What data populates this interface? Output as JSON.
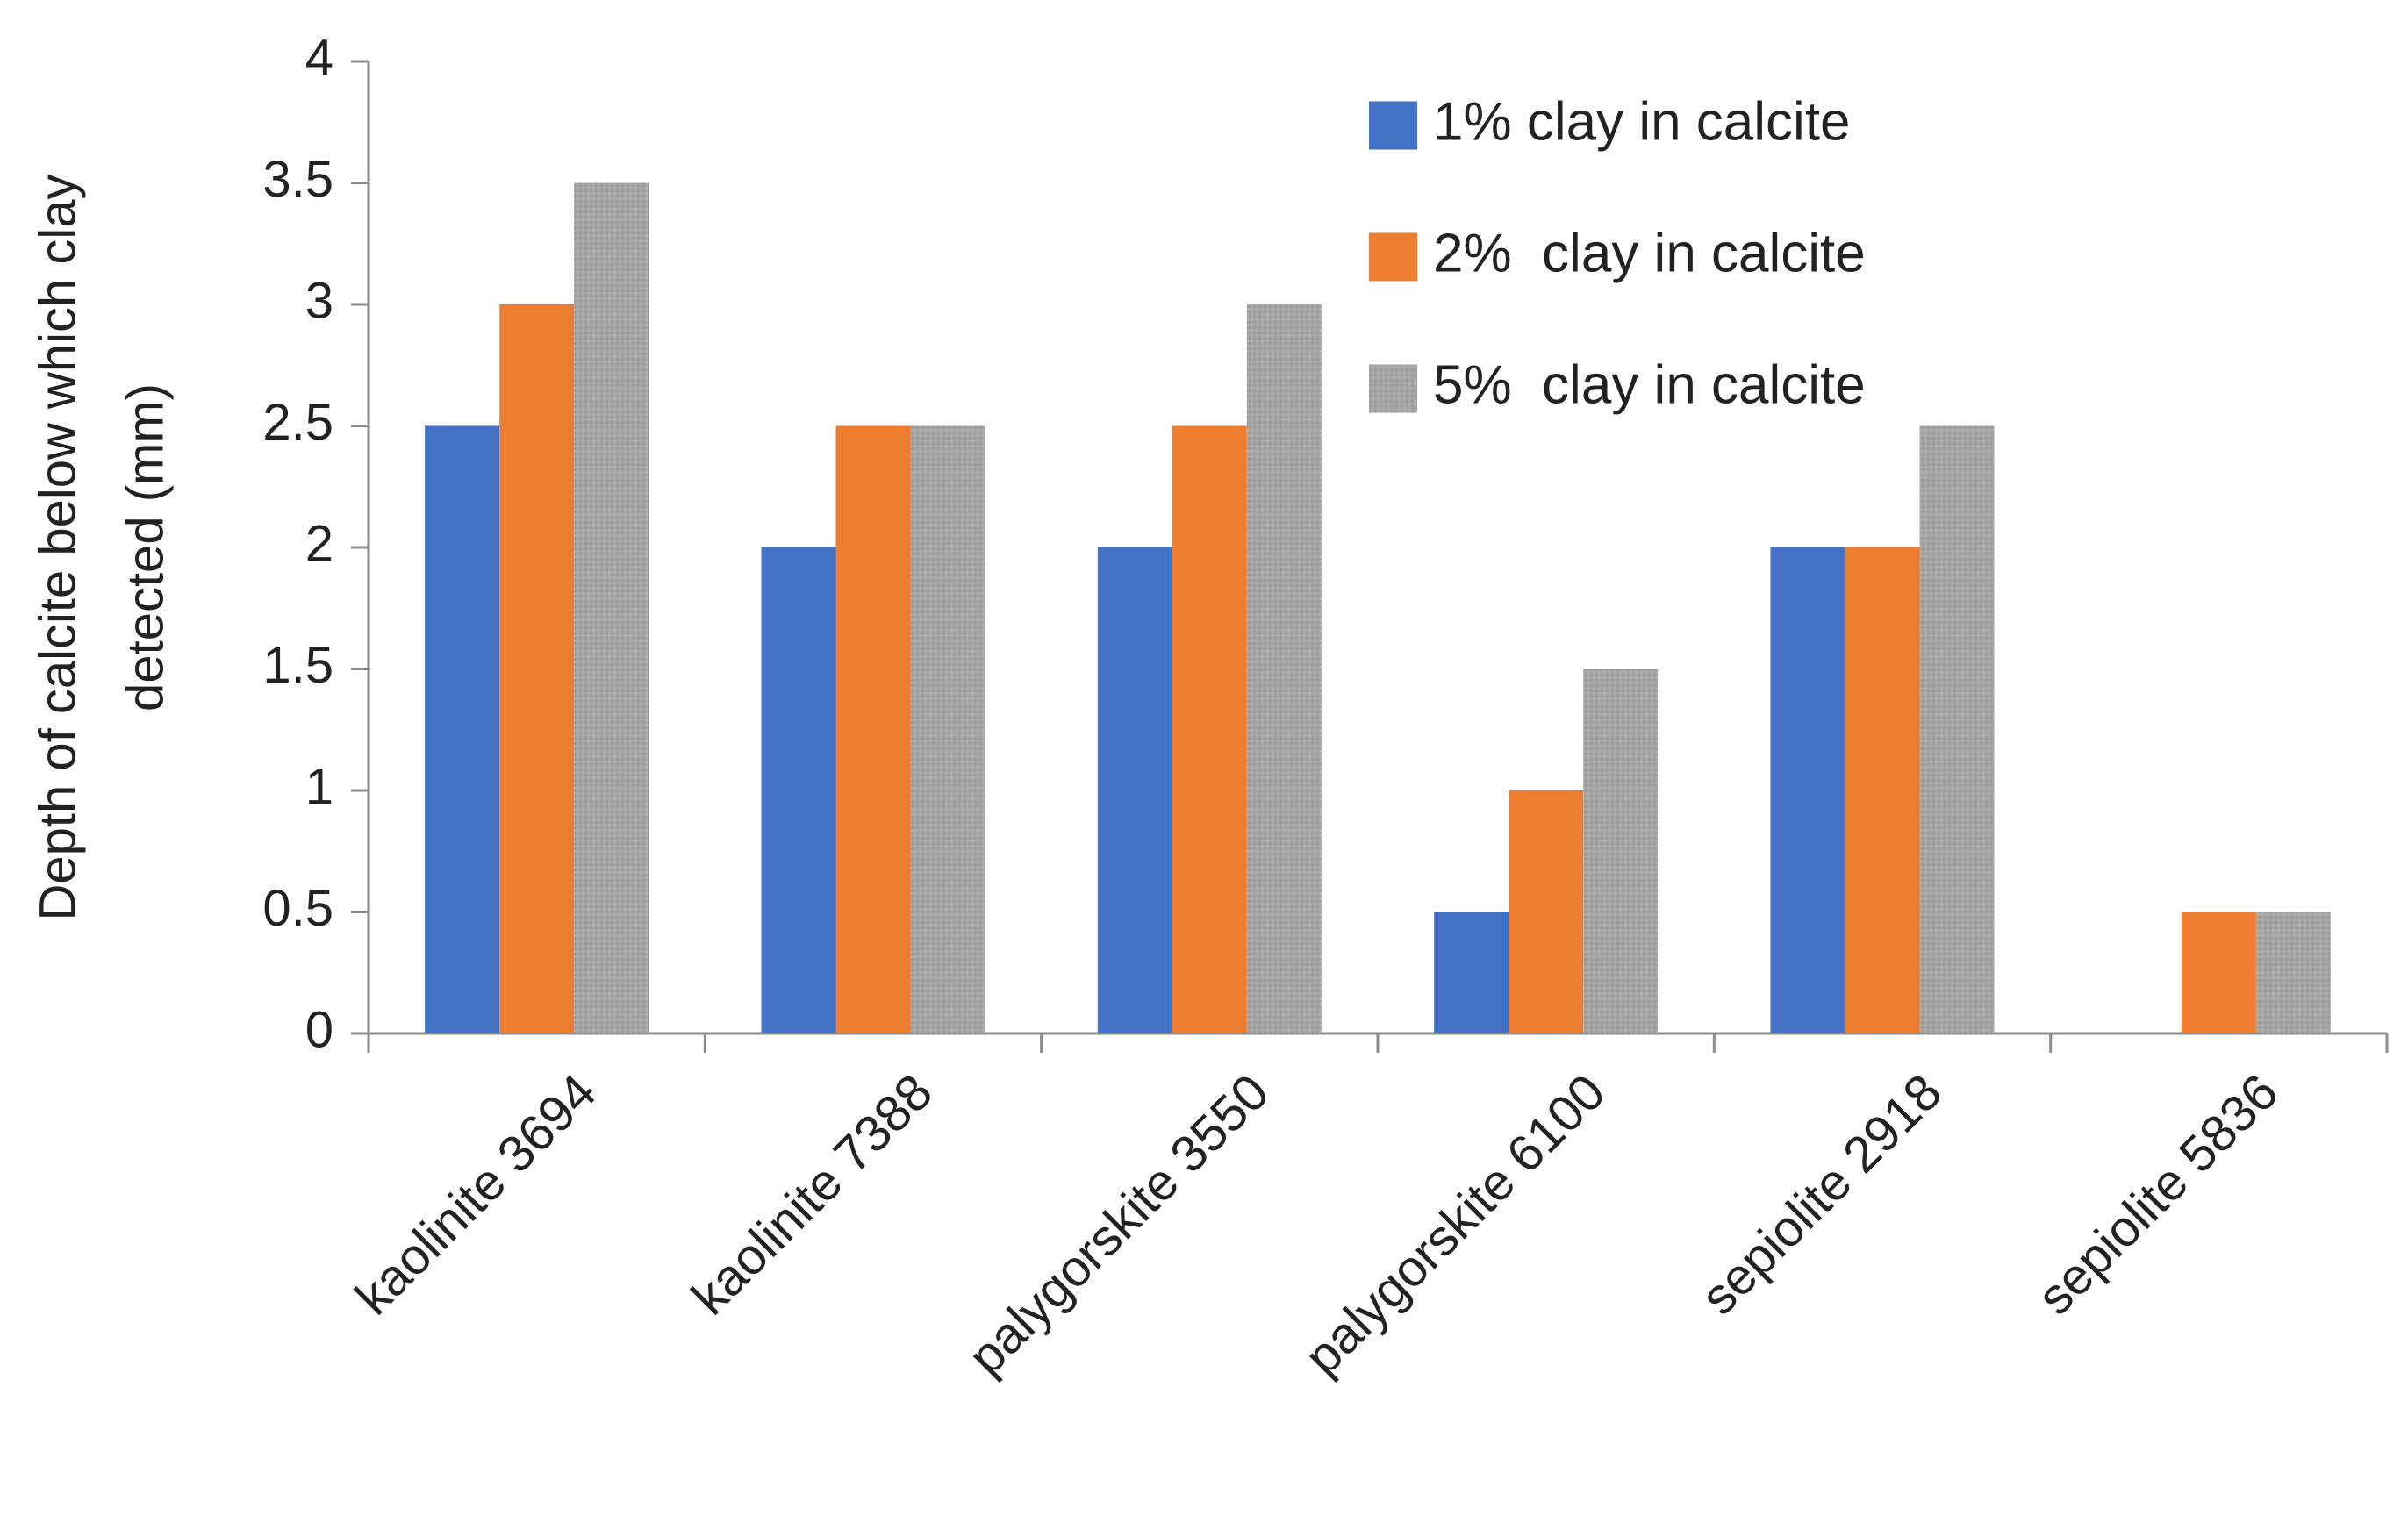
{
  "chart_data": {
    "type": "bar",
    "title": "",
    "xlabel": "",
    "ylabel": [
      "Depth of calcite below which clay",
      "detected (mm)"
    ],
    "ylim": [
      0,
      4
    ],
    "yticks": [
      0,
      0.5,
      1,
      1.5,
      2,
      2.5,
      3,
      3.5,
      4
    ],
    "ytick_labels": [
      "0",
      "0.5",
      "1",
      "1.5",
      "2",
      "2.5",
      "3",
      "3.5",
      "4"
    ],
    "categories": [
      "kaolinite 3694",
      "kaolinite 7388",
      "palygorskite 3550",
      "palygorskite 6100",
      "sepiolite 2918",
      "sepiolite 5836"
    ],
    "series": [
      {
        "name": "1% clay in calcite",
        "color": "#4472C4",
        "values": [
          2.5,
          2,
          2,
          0.5,
          2,
          0
        ]
      },
      {
        "name": "2%  clay in calcite",
        "color": "#ED7D31",
        "values": [
          3,
          2.5,
          2.5,
          1,
          2,
          0.5
        ]
      },
      {
        "name": "5%  clay in calcite",
        "color": "#A5A5A5",
        "values": [
          3.5,
          2.5,
          3,
          1.5,
          2.5,
          0.5
        ]
      }
    ],
    "legend_position": "top-right",
    "grid": false
  }
}
